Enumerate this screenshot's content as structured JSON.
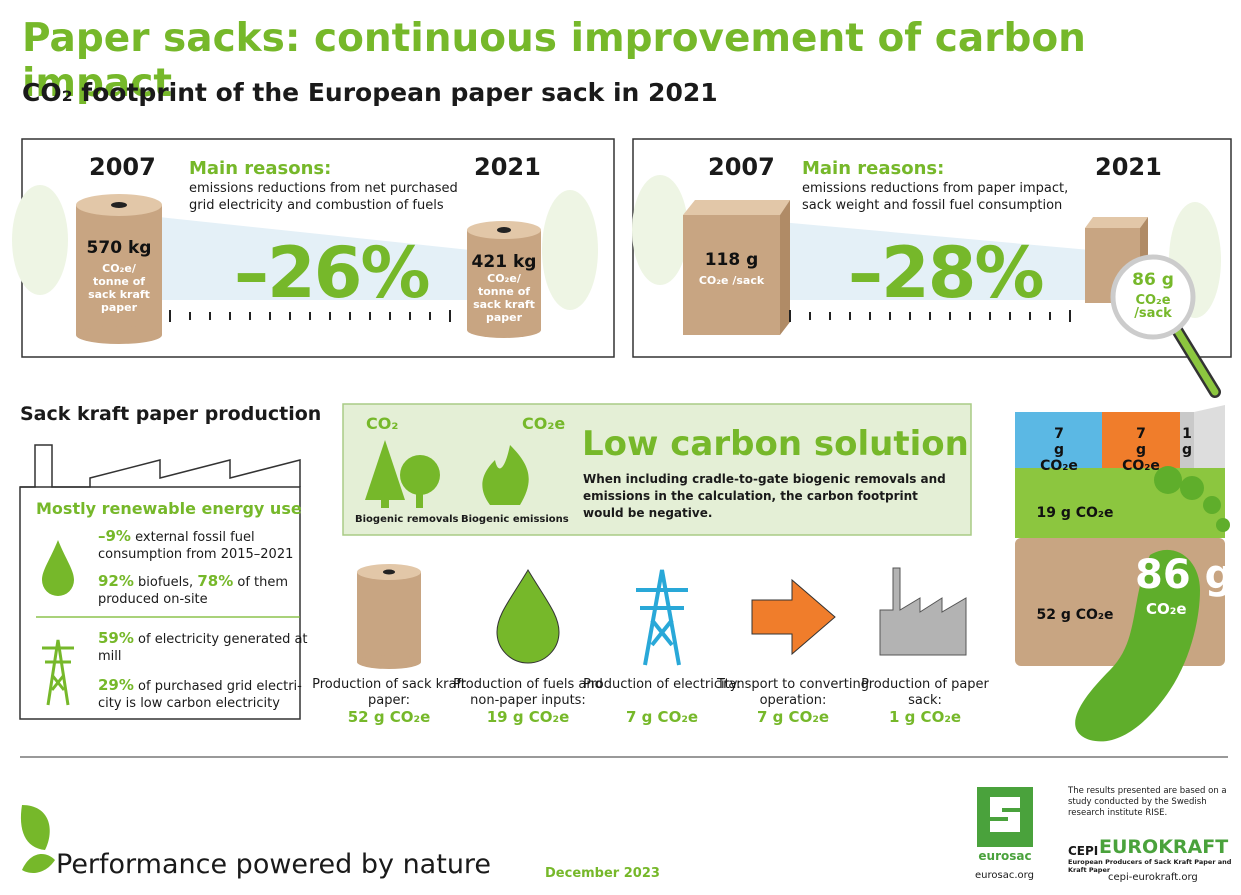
{
  "title": "Paper sacks: continuous improvement of carbon impact",
  "subtitle": "CO₂ footprint of the European paper sack in 2021",
  "panels": [
    {
      "year_from": "2007",
      "year_to": "2021",
      "reasons_title": "Main reasons:",
      "reasons_text": "emissions reductions from net purchased grid electricity and combustion of fuels",
      "from_value": "570 kg",
      "from_unit": "CO₂e/ tonne of sack kraft paper",
      "change": "–26%",
      "to_value": "421 kg",
      "to_unit": "CO₂e/ tonne of sack kraft paper"
    },
    {
      "year_from": "2007",
      "year_to": "2021",
      "reasons_title": "Main reasons:",
      "reasons_text": "emissions reductions from paper impact, sack weight and fossil fuel consumption",
      "from_value": "118 g",
      "from_unit": "CO₂e /sack",
      "change": "–28%",
      "to_value": "86 g",
      "to_unit": "CO₂e /sack"
    }
  ],
  "production": {
    "heading": "Sack kraft paper production",
    "box_title": "Mostly renewable energy use",
    "items": [
      [
        "–9%",
        " external fossil fuel consumption from 2015–2021"
      ],
      [
        "92%",
        " biofuels, ",
        "78%",
        " of them produced on-site"
      ],
      [
        "59%",
        " of electricity generated at mill"
      ],
      [
        "29%",
        " of purchased grid electri-city is low carbon electricity"
      ]
    ]
  },
  "low_carbon": {
    "removals_gas": "CO₂",
    "emissions_gas": "CO₂e",
    "removals_label": "Biogenic removals",
    "emissions_label": "Biogenic emissions",
    "title": "Low carbon solution",
    "text": "When including cradle-to-gate biogenic removals and emissions in the calculation, the carbon footprint would be negative."
  },
  "stages": [
    {
      "label": "Production of sack kraft paper:",
      "value": "52 g CO₂e"
    },
    {
      "label": "Production of fuels and non-paper inputs:",
      "value": "19 g CO₂e"
    },
    {
      "label": "Production of electricity:",
      "value": "7 g CO₂e"
    },
    {
      "label": "Transport to converting operation:",
      "value": "7 g CO₂e"
    },
    {
      "label": "Production of paper sack:",
      "value": "1 g CO₂e"
    }
  ],
  "sack_breakdown": {
    "segments": [
      "7 g CO₂e",
      "7 g CO₂e",
      "1 g",
      "19 g CO₂e",
      "52 g CO₂e"
    ],
    "total": "86 g",
    "total_unit": "CO₂e"
  },
  "footer": {
    "slogan": "Performance powered by nature",
    "date": "December 2023",
    "eurosac_name": "eurosac",
    "eurosac_url": "eurosac.org",
    "note": "The results presented are based on a study conducted by the Swedish research institute RISE.",
    "cepi": "CEPI",
    "eurokraft": "EUROKRAFT",
    "eurokraft_sub": "European Producers of Sack Kraft Paper and Kraft Paper",
    "eurokraft_url": "cepi-eurokraft.org"
  }
}
